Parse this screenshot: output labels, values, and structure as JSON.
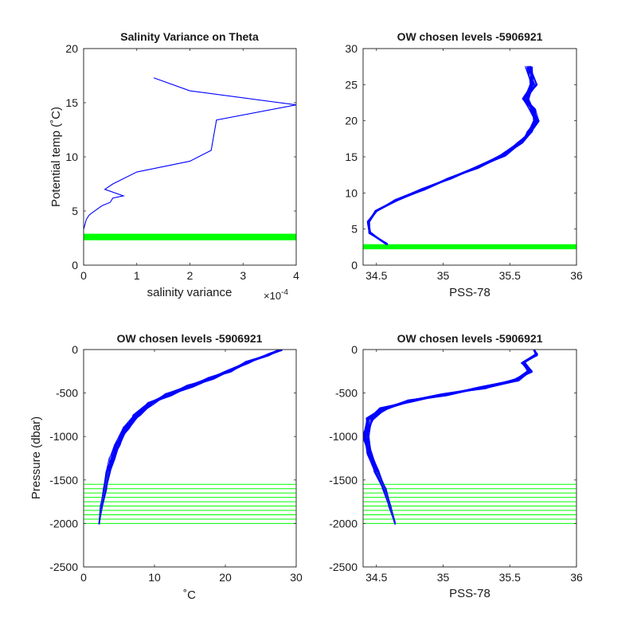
{
  "chart_data": [
    {
      "type": "line",
      "title": "Salinity Variance on Theta",
      "xlabel": "salinity variance",
      "ylabel": "Potential temp (˚C)",
      "x_exponent_base": "×10",
      "x_exponent_power": "-4",
      "xlim": [
        0,
        4
      ],
      "ylim": [
        0,
        20
      ],
      "xticks": [
        0,
        1,
        2,
        3,
        4
      ],
      "xtick_labels": [
        "0",
        "1",
        "2",
        "3",
        "4"
      ],
      "yticks": [
        0,
        5,
        10,
        15,
        20
      ],
      "ytick_labels": [
        "0",
        "5",
        "10",
        "15",
        "20"
      ],
      "grid": false,
      "series": [
        {
          "color": "#0000ff",
          "x": [
            0.0,
            0.05,
            0.1,
            0.15,
            0.35,
            0.5,
            0.55,
            0.75,
            0.4,
            0.55,
            1.0,
            2.0,
            2.4,
            2.5,
            4.0,
            2.0,
            1.32
          ],
          "y": [
            3.3,
            4.2,
            4.6,
            4.8,
            5.5,
            5.8,
            6.2,
            6.4,
            7.0,
            7.5,
            8.6,
            9.6,
            10.6,
            13.4,
            14.8,
            16.1,
            17.3
          ]
        }
      ],
      "bands": [
        {
          "color": "#00ff00",
          "y_from": 2.3,
          "y_to": 2.9
        }
      ]
    },
    {
      "type": "line",
      "title": "OW chosen levels -5906921",
      "xlabel": "PSS-78",
      "ylabel": "",
      "xlim": [
        34.4,
        36
      ],
      "ylim": [
        0,
        30
      ],
      "xticks": [
        34.5,
        35,
        35.5,
        36
      ],
      "xtick_labels": [
        "34.5",
        "35",
        "35.5",
        "36"
      ],
      "yticks": [
        0,
        5,
        10,
        15,
        20,
        25,
        30
      ],
      "ytick_labels": [
        "0",
        "5",
        "10",
        "15",
        "20",
        "25",
        "30"
      ],
      "grid": false,
      "series": [
        {
          "color": "#0000ff",
          "name": "",
          "x": [
            34.58,
            34.45,
            34.44,
            34.5,
            34.65,
            34.85,
            35.05,
            35.25,
            35.45,
            35.58,
            35.65,
            35.7,
            35.67,
            35.62,
            35.68,
            35.64
          ],
          "y": [
            2.9,
            4.5,
            6.0,
            7.5,
            9.0,
            10.5,
            12.0,
            13.5,
            15.2,
            17.0,
            18.5,
            20.0,
            21.5,
            23.0,
            25.0,
            27.5
          ]
        }
      ],
      "bands": [
        {
          "color": "#00ff00",
          "y_from": 2.2,
          "y_to": 2.9
        }
      ]
    },
    {
      "type": "line",
      "title": "OW chosen levels -5906921",
      "xlabel": "˚C",
      "ylabel": "Pressure (dbar)",
      "xlim": [
        0,
        30
      ],
      "ylim": [
        -2500,
        0
      ],
      "xticks": [
        0,
        10,
        20,
        30
      ],
      "xtick_labels": [
        "0",
        "10",
        "20",
        "30"
      ],
      "yticks": [
        -2500,
        -2000,
        -1500,
        -1000,
        -500,
        0
      ],
      "ytick_labels": [
        "-2500",
        "-2000",
        "-1500",
        "-1000",
        "-500",
        "0"
      ],
      "grid": false,
      "series": [
        {
          "color": "#0000ff",
          "x": [
            2.2,
            2.5,
            3.0,
            3.5,
            4.0,
            4.8,
            6.0,
            7.5,
            9.5,
            12.0,
            15.0,
            18.0,
            20.5,
            23.0,
            26.0,
            28.0
          ],
          "y": [
            -2000,
            -1800,
            -1600,
            -1400,
            -1250,
            -1100,
            -900,
            -750,
            -620,
            -520,
            -420,
            -330,
            -250,
            -150,
            -60,
            0
          ]
        }
      ],
      "levels": [
        -1550,
        -1600,
        -1650,
        -1700,
        -1750,
        -1800,
        -1850,
        -1900,
        -1950,
        -2000
      ],
      "level_color": "#00ff00"
    },
    {
      "type": "line",
      "title": "OW chosen levels -5906921",
      "xlabel": "PSS-78",
      "ylabel": "",
      "xlim": [
        34.4,
        36
      ],
      "ylim": [
        -2500,
        0
      ],
      "xticks": [
        34.5,
        35,
        35.5,
        36
      ],
      "xtick_labels": [
        "34.5",
        "35",
        "35.5",
        "36"
      ],
      "yticks": [
        -2500,
        -2000,
        -1500,
        -1000,
        -500,
        0
      ],
      "ytick_labels": [
        "-2500",
        "-2000",
        "-1500",
        "-1000",
        "-500",
        "0"
      ],
      "grid": false,
      "series": [
        {
          "color": "#0000ff",
          "x": [
            34.64,
            34.6,
            34.56,
            34.5,
            34.45,
            34.42,
            34.45,
            34.55,
            34.75,
            35.0,
            35.3,
            35.55,
            35.65,
            35.6,
            35.7,
            35.68
          ],
          "y": [
            -2000,
            -1800,
            -1600,
            -1400,
            -1200,
            -1000,
            -800,
            -680,
            -590,
            -520,
            -440,
            -350,
            -250,
            -150,
            -60,
            0
          ]
        }
      ],
      "levels": [
        -1550,
        -1600,
        -1650,
        -1700,
        -1750,
        -1800,
        -1850,
        -1900,
        -1950,
        -2000
      ],
      "level_color": "#00ff00"
    }
  ]
}
